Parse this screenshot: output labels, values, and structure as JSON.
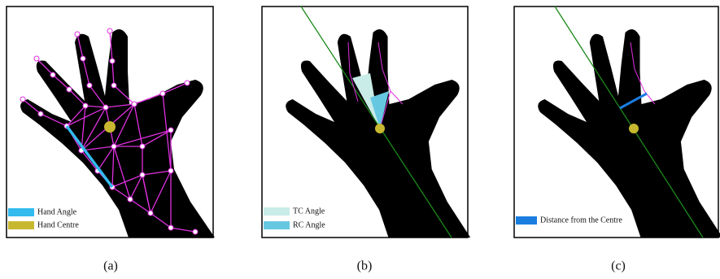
{
  "panels": [
    {
      "caption": "(a)",
      "legend": [
        "Hand Angle",
        "Hand Centre"
      ]
    },
    {
      "caption": "(b)",
      "legend": [
        "TC Angle",
        "RC Angle"
      ]
    },
    {
      "caption": "(c)",
      "legend": [
        "Distance from the Centre"
      ]
    }
  ]
}
